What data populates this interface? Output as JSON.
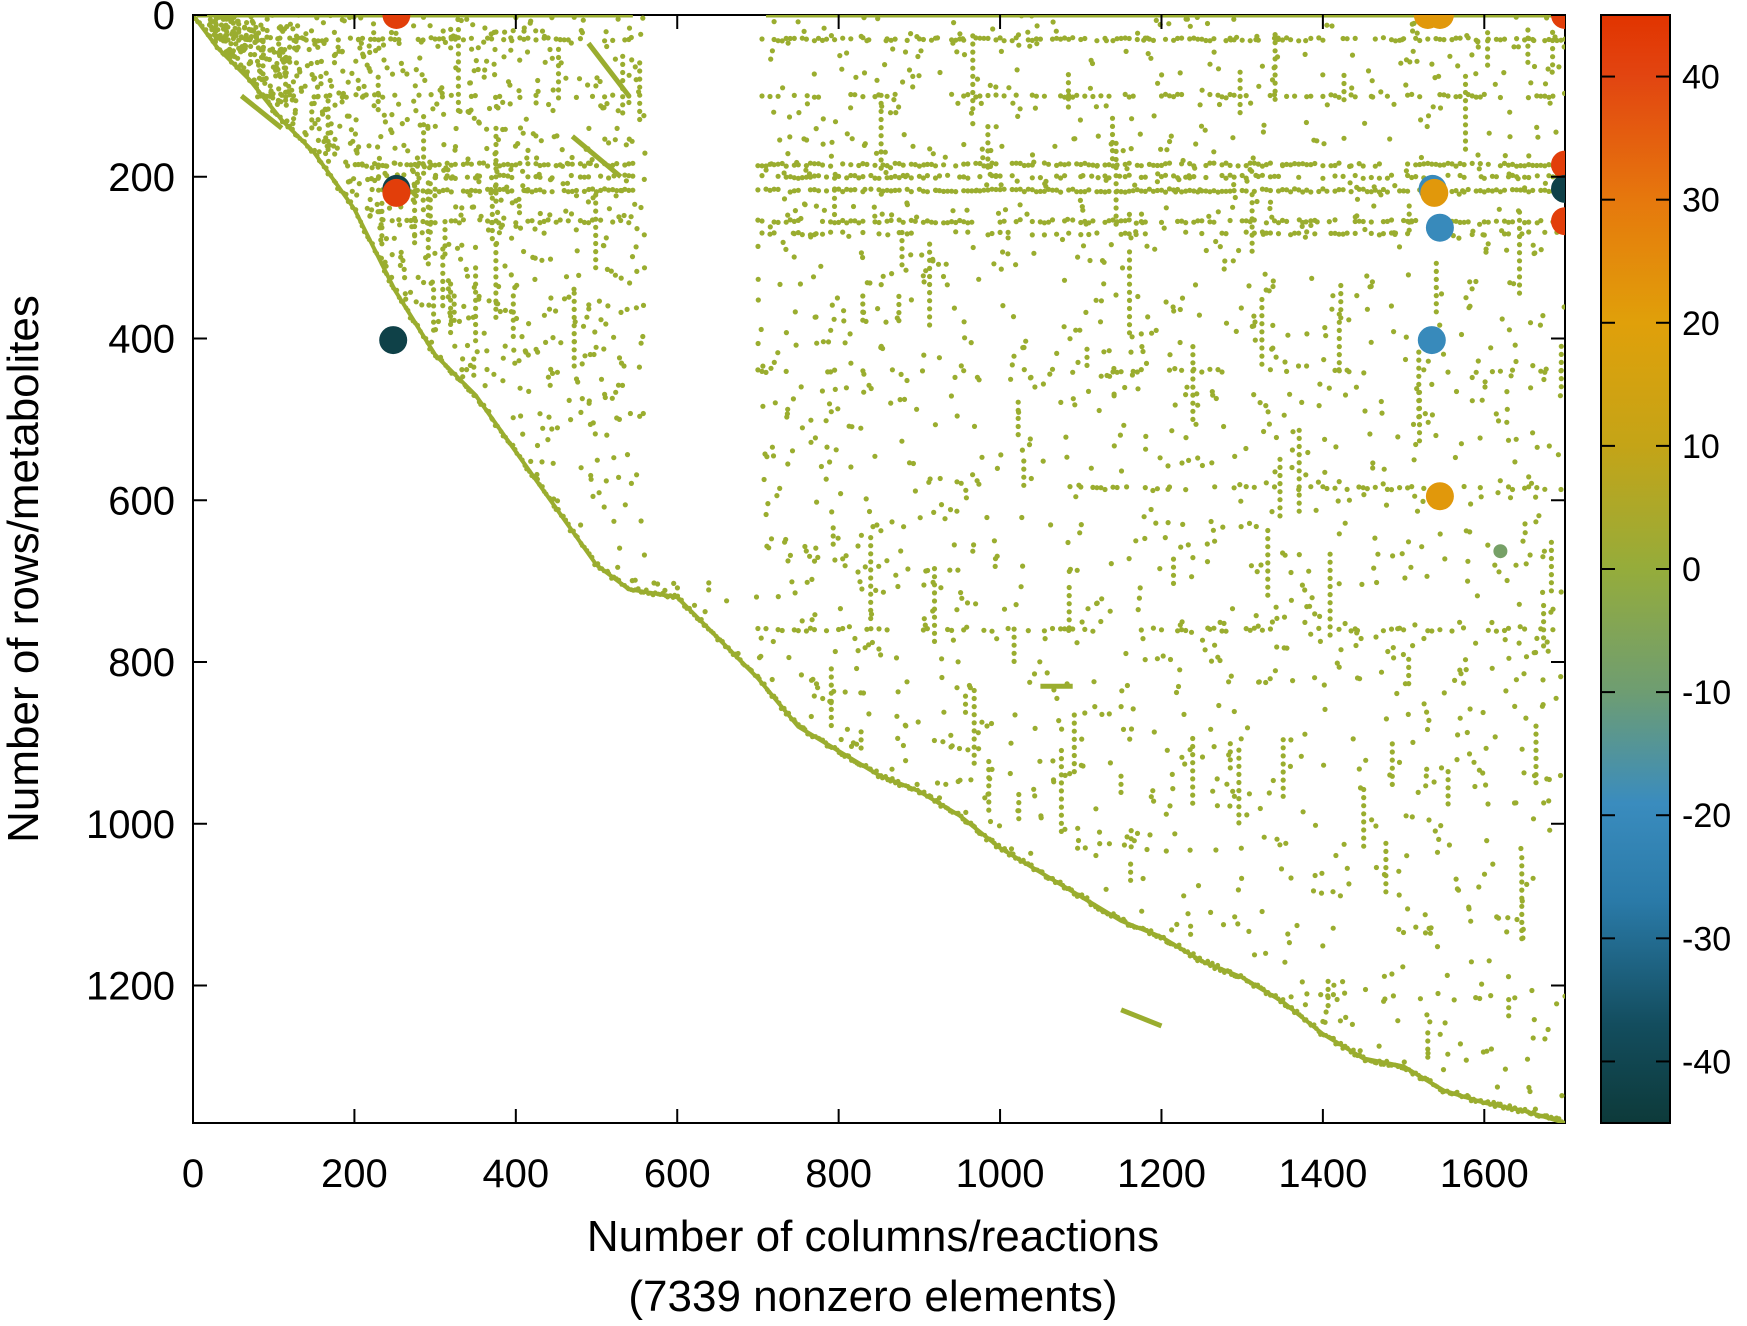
{
  "chart_data": {
    "type": "scatter",
    "xlabel": "Number of columns/reactions",
    "xlabel_line2": "(7339 nonzero elements)",
    "ylabel": "Number of rows/metabolites",
    "xlim": [
      0,
      1700
    ],
    "ylim": [
      0,
      1370
    ],
    "y_axis_inverted": true,
    "xticks": [
      "0",
      "200",
      "400",
      "600",
      "800",
      "1000",
      "1200",
      "1400",
      "1600"
    ],
    "yticks": [
      "0",
      "200",
      "400",
      "600",
      "800",
      "1000",
      "1200"
    ],
    "grid": false,
    "base_point_color": "#9aad2f",
    "colorbar": {
      "range": [
        -45,
        45
      ],
      "ticks": [
        "40",
        "30",
        "20",
        "10",
        "0",
        "-10",
        "-20",
        "-30",
        "-40"
      ],
      "stops": [
        {
          "value": -45,
          "color": "#0d3a3a"
        },
        {
          "value": -37,
          "color": "#134d5e"
        },
        {
          "value": -27,
          "color": "#2a7aa8"
        },
        {
          "value": -19,
          "color": "#3a8cbe"
        },
        {
          "value": -10,
          "color": "#6e9d72"
        },
        {
          "value": 0,
          "color": "#95ac3b"
        },
        {
          "value": 10,
          "color": "#c4a417"
        },
        {
          "value": 20,
          "color": "#e0a00a"
        },
        {
          "value": 30,
          "color": "#e6780d"
        },
        {
          "value": 40,
          "color": "#e24511"
        },
        {
          "value": 45,
          "color": "#e13400"
        }
      ]
    },
    "diagonal": [
      [
        0,
        0
      ],
      [
        30,
        40
      ],
      [
        70,
        80
      ],
      [
        110,
        130
      ],
      [
        150,
        170
      ],
      [
        200,
        240
      ],
      [
        250,
        340
      ],
      [
        300,
        420
      ],
      [
        350,
        470
      ],
      [
        400,
        540
      ],
      [
        450,
        610
      ],
      [
        500,
        680
      ],
      [
        540,
        710
      ],
      [
        600,
        720
      ],
      [
        650,
        770
      ],
      [
        700,
        820
      ],
      [
        750,
        880
      ],
      [
        800,
        910
      ],
      [
        850,
        940
      ],
      [
        900,
        960
      ],
      [
        950,
        990
      ],
      [
        1000,
        1030
      ],
      [
        1050,
        1060
      ],
      [
        1100,
        1090
      ],
      [
        1150,
        1120
      ],
      [
        1200,
        1140
      ],
      [
        1250,
        1170
      ],
      [
        1300,
        1190
      ],
      [
        1350,
        1220
      ],
      [
        1400,
        1260
      ],
      [
        1450,
        1290
      ],
      [
        1500,
        1300
      ],
      [
        1550,
        1330
      ],
      [
        1600,
        1345
      ],
      [
        1650,
        1355
      ],
      [
        1700,
        1370
      ]
    ],
    "segments": [
      {
        "x": [
          5,
          545
        ],
        "y": [
          0,
          0
        ],
        "note": "dense row 0 band"
      },
      {
        "x": [
          710,
          1700
        ],
        "y": [
          0,
          0
        ]
      },
      {
        "x": [
          490,
          540
        ],
        "y": [
          35,
          100
        ]
      },
      {
        "x": [
          60,
          110
        ],
        "y": [
          100,
          140
        ]
      },
      {
        "x": [
          470,
          530
        ],
        "y": [
          150,
          200
        ]
      },
      {
        "x": [
          1050,
          1090
        ],
        "y": [
          830,
          830
        ]
      },
      {
        "x": [
          1150,
          1200
        ],
        "y": [
          1230,
          1250
        ]
      }
    ],
    "highlighted_values": [
      {
        "x": 252,
        "y": 0,
        "value": 42
      },
      {
        "x": 252,
        "y": 215,
        "value": -42
      },
      {
        "x": 252,
        "y": 220,
        "value": 42
      },
      {
        "x": 248,
        "y": 402,
        "value": -42
      },
      {
        "x": 1530,
        "y": 0,
        "value": 22
      },
      {
        "x": 1545,
        "y": 0,
        "value": 22
      },
      {
        "x": 1536,
        "y": 215,
        "value": -20
      },
      {
        "x": 1538,
        "y": 220,
        "value": 22
      },
      {
        "x": 1545,
        "y": 263,
        "value": -20
      },
      {
        "x": 1535,
        "y": 402,
        "value": -20
      },
      {
        "x": 1545,
        "y": 595,
        "value": 22
      },
      {
        "x": 1620,
        "y": 663,
        "value": -8
      },
      {
        "x": 1700,
        "y": 0,
        "value": 42
      },
      {
        "x": 1700,
        "y": 185,
        "value": 42
      },
      {
        "x": 1700,
        "y": 215,
        "value": -42
      },
      {
        "x": 1700,
        "y": 255,
        "value": 42
      }
    ]
  }
}
